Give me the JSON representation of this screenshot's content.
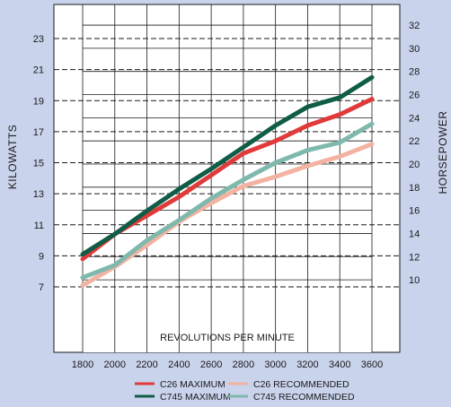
{
  "chart_data": {
    "type": "line",
    "xlabel": "REVOLUTIONS PER MINUTE",
    "ylabel_left": "KILOWATTS",
    "ylabel_right": "HORSEPOWER",
    "x": [
      1800,
      2000,
      2200,
      2400,
      2600,
      2800,
      3000,
      3200,
      3400,
      3600
    ],
    "xlim": [
      1800,
      3600
    ],
    "ylim_left": [
      7,
      23
    ],
    "left_ticks": [
      7,
      9,
      11,
      13,
      15,
      17,
      19,
      21,
      23
    ],
    "right_ticks": [
      10,
      12,
      14,
      16,
      18,
      20,
      22,
      24,
      26,
      28,
      30,
      32
    ],
    "grid": true,
    "legend_position": "bottom",
    "series": [
      {
        "name": "C26 MAXIMUM",
        "color": "#e03a3a",
        "x": [
          1800,
          2000,
          2200,
          2400,
          2600,
          2800,
          3000,
          3200,
          3400,
          3600
        ],
        "values": [
          8.8,
          10.4,
          11.6,
          12.8,
          14.2,
          15.6,
          16.4,
          17.4,
          18.1,
          19.1
        ]
      },
      {
        "name": "C745 MAXIMUM",
        "color": "#0f5c47",
        "x": [
          1800,
          2000,
          2200,
          2400,
          2600,
          2800,
          3000,
          3200,
          3400,
          3600
        ],
        "values": [
          9.1,
          10.4,
          11.9,
          13.3,
          14.6,
          16.0,
          17.4,
          18.6,
          19.2,
          20.5
        ]
      },
      {
        "name": "C26 RECOMMENDED",
        "color": "#f3b3a2",
        "x": [
          1800,
          2000,
          2200,
          2400,
          2600,
          2800,
          3000,
          3200,
          3400,
          3600
        ],
        "values": [
          7.1,
          8.3,
          9.7,
          11.2,
          12.4,
          13.5,
          14.1,
          14.8,
          15.4,
          16.2
        ]
      },
      {
        "name": "C745 RECOMMENDED",
        "color": "#7fb8ad",
        "x": [
          1800,
          2000,
          2200,
          2400,
          2600,
          2800,
          3000,
          3200,
          3400,
          3600
        ],
        "values": [
          7.6,
          8.4,
          10.0,
          11.3,
          12.7,
          13.9,
          15.0,
          15.8,
          16.3,
          17.5
        ]
      }
    ]
  }
}
